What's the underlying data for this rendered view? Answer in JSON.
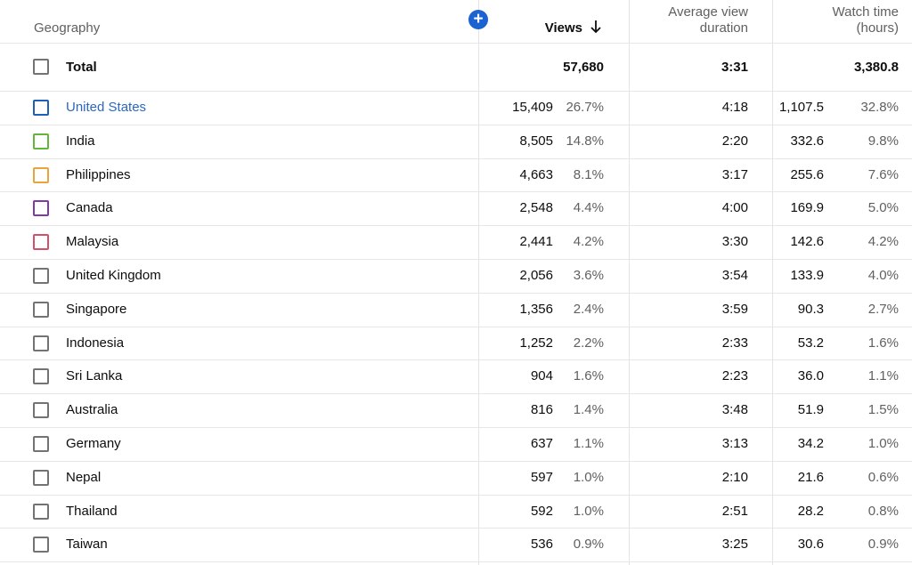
{
  "header": {
    "geography_label": "Geography",
    "add_icon": "plus-icon",
    "views_label": "Views",
    "sort_icon": "arrow-down-icon",
    "avg_duration_line1": "Average view",
    "avg_duration_line2": "duration",
    "watch_time_line1": "Watch time",
    "watch_time_line2": "(hours)"
  },
  "total": {
    "label": "Total",
    "views": "57,680",
    "avg_duration": "3:31",
    "watch_time": "3,380.8"
  },
  "colors": {
    "accent": "#1a63d1",
    "selected_text": "#2a67c4"
  },
  "rows": [
    {
      "name": "United States",
      "views": "15,409",
      "views_pct": "26.7%",
      "avg_duration": "4:18",
      "watch_time": "1,107.5",
      "watch_pct": "32.8%",
      "checkbox_color": "#1f5fb8",
      "selected": true
    },
    {
      "name": "India",
      "views": "8,505",
      "views_pct": "14.8%",
      "avg_duration": "2:20",
      "watch_time": "332.6",
      "watch_pct": "9.8%",
      "checkbox_color": "#64b53a"
    },
    {
      "name": "Philippines",
      "views": "4,663",
      "views_pct": "8.1%",
      "avg_duration": "3:17",
      "watch_time": "255.6",
      "watch_pct": "7.6%",
      "checkbox_color": "#e9a53b"
    },
    {
      "name": "Canada",
      "views": "2,548",
      "views_pct": "4.4%",
      "avg_duration": "4:00",
      "watch_time": "169.9",
      "watch_pct": "5.0%",
      "checkbox_color": "#7e3ba8"
    },
    {
      "name": "Malaysia",
      "views": "2,441",
      "views_pct": "4.2%",
      "avg_duration": "3:30",
      "watch_time": "142.6",
      "watch_pct": "4.2%",
      "checkbox_color": "#d2506a"
    },
    {
      "name": "United Kingdom",
      "views": "2,056",
      "views_pct": "3.6%",
      "avg_duration": "3:54",
      "watch_time": "133.9",
      "watch_pct": "4.0%",
      "checkbox_color": "#737373"
    },
    {
      "name": "Singapore",
      "views": "1,356",
      "views_pct": "2.4%",
      "avg_duration": "3:59",
      "watch_time": "90.3",
      "watch_pct": "2.7%",
      "checkbox_color": "#737373"
    },
    {
      "name": "Indonesia",
      "views": "1,252",
      "views_pct": "2.2%",
      "avg_duration": "2:33",
      "watch_time": "53.2",
      "watch_pct": "1.6%",
      "checkbox_color": "#737373"
    },
    {
      "name": "Sri Lanka",
      "views": "904",
      "views_pct": "1.6%",
      "avg_duration": "2:23",
      "watch_time": "36.0",
      "watch_pct": "1.1%",
      "checkbox_color": "#737373"
    },
    {
      "name": "Australia",
      "views": "816",
      "views_pct": "1.4%",
      "avg_duration": "3:48",
      "watch_time": "51.9",
      "watch_pct": "1.5%",
      "checkbox_color": "#737373"
    },
    {
      "name": "Germany",
      "views": "637",
      "views_pct": "1.1%",
      "avg_duration": "3:13",
      "watch_time": "34.2",
      "watch_pct": "1.0%",
      "checkbox_color": "#737373"
    },
    {
      "name": "Nepal",
      "views": "597",
      "views_pct": "1.0%",
      "avg_duration": "2:10",
      "watch_time": "21.6",
      "watch_pct": "0.6%",
      "checkbox_color": "#737373"
    },
    {
      "name": "Thailand",
      "views": "592",
      "views_pct": "1.0%",
      "avg_duration": "2:51",
      "watch_time": "28.2",
      "watch_pct": "0.8%",
      "checkbox_color": "#737373"
    },
    {
      "name": "Taiwan",
      "views": "536",
      "views_pct": "0.9%",
      "avg_duration": "3:25",
      "watch_time": "30.6",
      "watch_pct": "0.9%",
      "checkbox_color": "#737373"
    }
  ]
}
